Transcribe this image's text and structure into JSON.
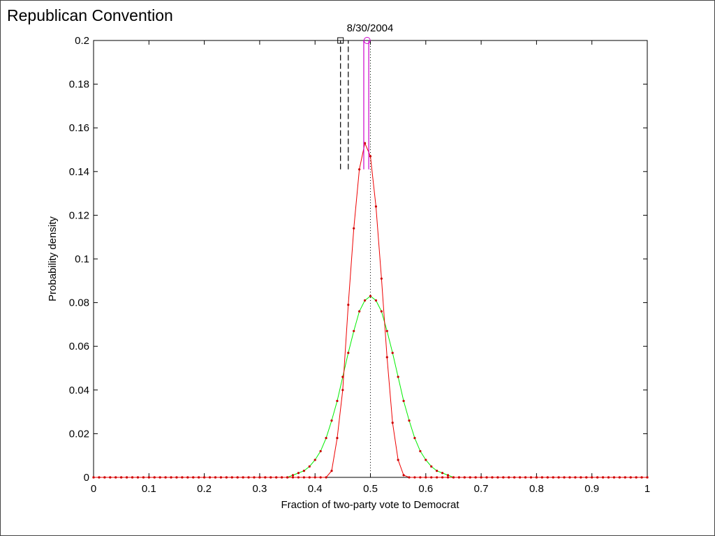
{
  "chart_data": {
    "type": "line",
    "title": "Republican Convention",
    "annotation": "8/30/2004",
    "xlabel": "Fraction of two-party vote to Democrat",
    "ylabel": "Probability density",
    "xlim": [
      0,
      1
    ],
    "ylim": [
      0,
      0.2
    ],
    "xticks": [
      0,
      0.1,
      0.2,
      0.3,
      0.4,
      0.5,
      0.6,
      0.7,
      0.8,
      0.9,
      1
    ],
    "yticks": [
      0,
      0.02,
      0.04,
      0.06,
      0.08,
      0.1,
      0.12,
      0.14,
      0.16,
      0.18,
      0.2
    ],
    "x": [
      0,
      0.01,
      0.02,
      0.03,
      0.04,
      0.05,
      0.06,
      0.07,
      0.08,
      0.09,
      0.1,
      0.11,
      0.12,
      0.13,
      0.14,
      0.15,
      0.16,
      0.17,
      0.18,
      0.19,
      0.2,
      0.21,
      0.22,
      0.23,
      0.24,
      0.25,
      0.26,
      0.27,
      0.28,
      0.29,
      0.3,
      0.31,
      0.32,
      0.33,
      0.34,
      0.35,
      0.36,
      0.37,
      0.38,
      0.39,
      0.4,
      0.41,
      0.42,
      0.43,
      0.44,
      0.45,
      0.46,
      0.47,
      0.48,
      0.49,
      0.5,
      0.51,
      0.52,
      0.53,
      0.54,
      0.55,
      0.56,
      0.57,
      0.58,
      0.59,
      0.6,
      0.61,
      0.62,
      0.63,
      0.64,
      0.65,
      0.66,
      0.67,
      0.68,
      0.69,
      0.7,
      0.71,
      0.72,
      0.73,
      0.74,
      0.75,
      0.76,
      0.77,
      0.78,
      0.79,
      0.8,
      0.81,
      0.82,
      0.83,
      0.84,
      0.85,
      0.86,
      0.87,
      0.88,
      0.89,
      0.9,
      0.91,
      0.92,
      0.93,
      0.94,
      0.95,
      0.96,
      0.97,
      0.98,
      0.99,
      1
    ],
    "series": [
      {
        "color": "#00ee00",
        "values": [
          0,
          0,
          0,
          0,
          0,
          0,
          0,
          0,
          0,
          0,
          0,
          0,
          0,
          0,
          0,
          0,
          0,
          0,
          0,
          0,
          0,
          0,
          0,
          0,
          0,
          0,
          0,
          0,
          0,
          0,
          0,
          0,
          0,
          0,
          0,
          0,
          0.001,
          0.002,
          0.003,
          0.005,
          0.008,
          0.012,
          0.018,
          0.026,
          0.035,
          0.046,
          0.057,
          0.067,
          0.076,
          0.081,
          0.083,
          0.081,
          0.076,
          0.067,
          0.057,
          0.046,
          0.035,
          0.026,
          0.018,
          0.012,
          0.008,
          0.005,
          0.003,
          0.002,
          0.001,
          0,
          0,
          0,
          0,
          0,
          0,
          0,
          0,
          0,
          0,
          0,
          0,
          0,
          0,
          0,
          0,
          0,
          0,
          0,
          0,
          0,
          0,
          0,
          0,
          0,
          0,
          0,
          0,
          0,
          0,
          0,
          0,
          0,
          0,
          0,
          0
        ]
      },
      {
        "color": "#ee0000",
        "values": [
          0,
          0,
          0,
          0,
          0,
          0,
          0,
          0,
          0,
          0,
          0,
          0,
          0,
          0,
          0,
          0,
          0,
          0,
          0,
          0,
          0,
          0,
          0,
          0,
          0,
          0,
          0,
          0,
          0,
          0,
          0,
          0,
          0,
          0,
          0,
          0,
          0,
          0,
          0,
          0,
          0,
          0,
          0,
          0.003,
          0.018,
          0.04,
          0.079,
          0.114,
          0.141,
          0.153,
          0.147,
          0.124,
          0.091,
          0.055,
          0.025,
          0.008,
          0.001,
          0,
          0,
          0,
          0,
          0,
          0,
          0,
          0,
          0,
          0,
          0,
          0,
          0,
          0,
          0,
          0,
          0,
          0,
          0,
          0,
          0,
          0,
          0,
          0,
          0,
          0,
          0,
          0,
          0,
          0,
          0,
          0,
          0,
          0,
          0,
          0,
          0,
          0,
          0,
          0,
          0,
          0,
          0,
          0
        ]
      }
    ],
    "vline": 0.5,
    "intervals": [
      {
        "lo": 0.446,
        "hi": 0.46,
        "ymin": 0.141,
        "ymax": 0.2,
        "marker_x": 0.446,
        "marker": "square",
        "color": "#000000"
      },
      {
        "lo": 0.488,
        "hi": 0.497,
        "ymin": 0.141,
        "ymax": 0.2,
        "marker_x": 0.494,
        "marker": "circle",
        "color": "#cc00cc"
      }
    ]
  }
}
